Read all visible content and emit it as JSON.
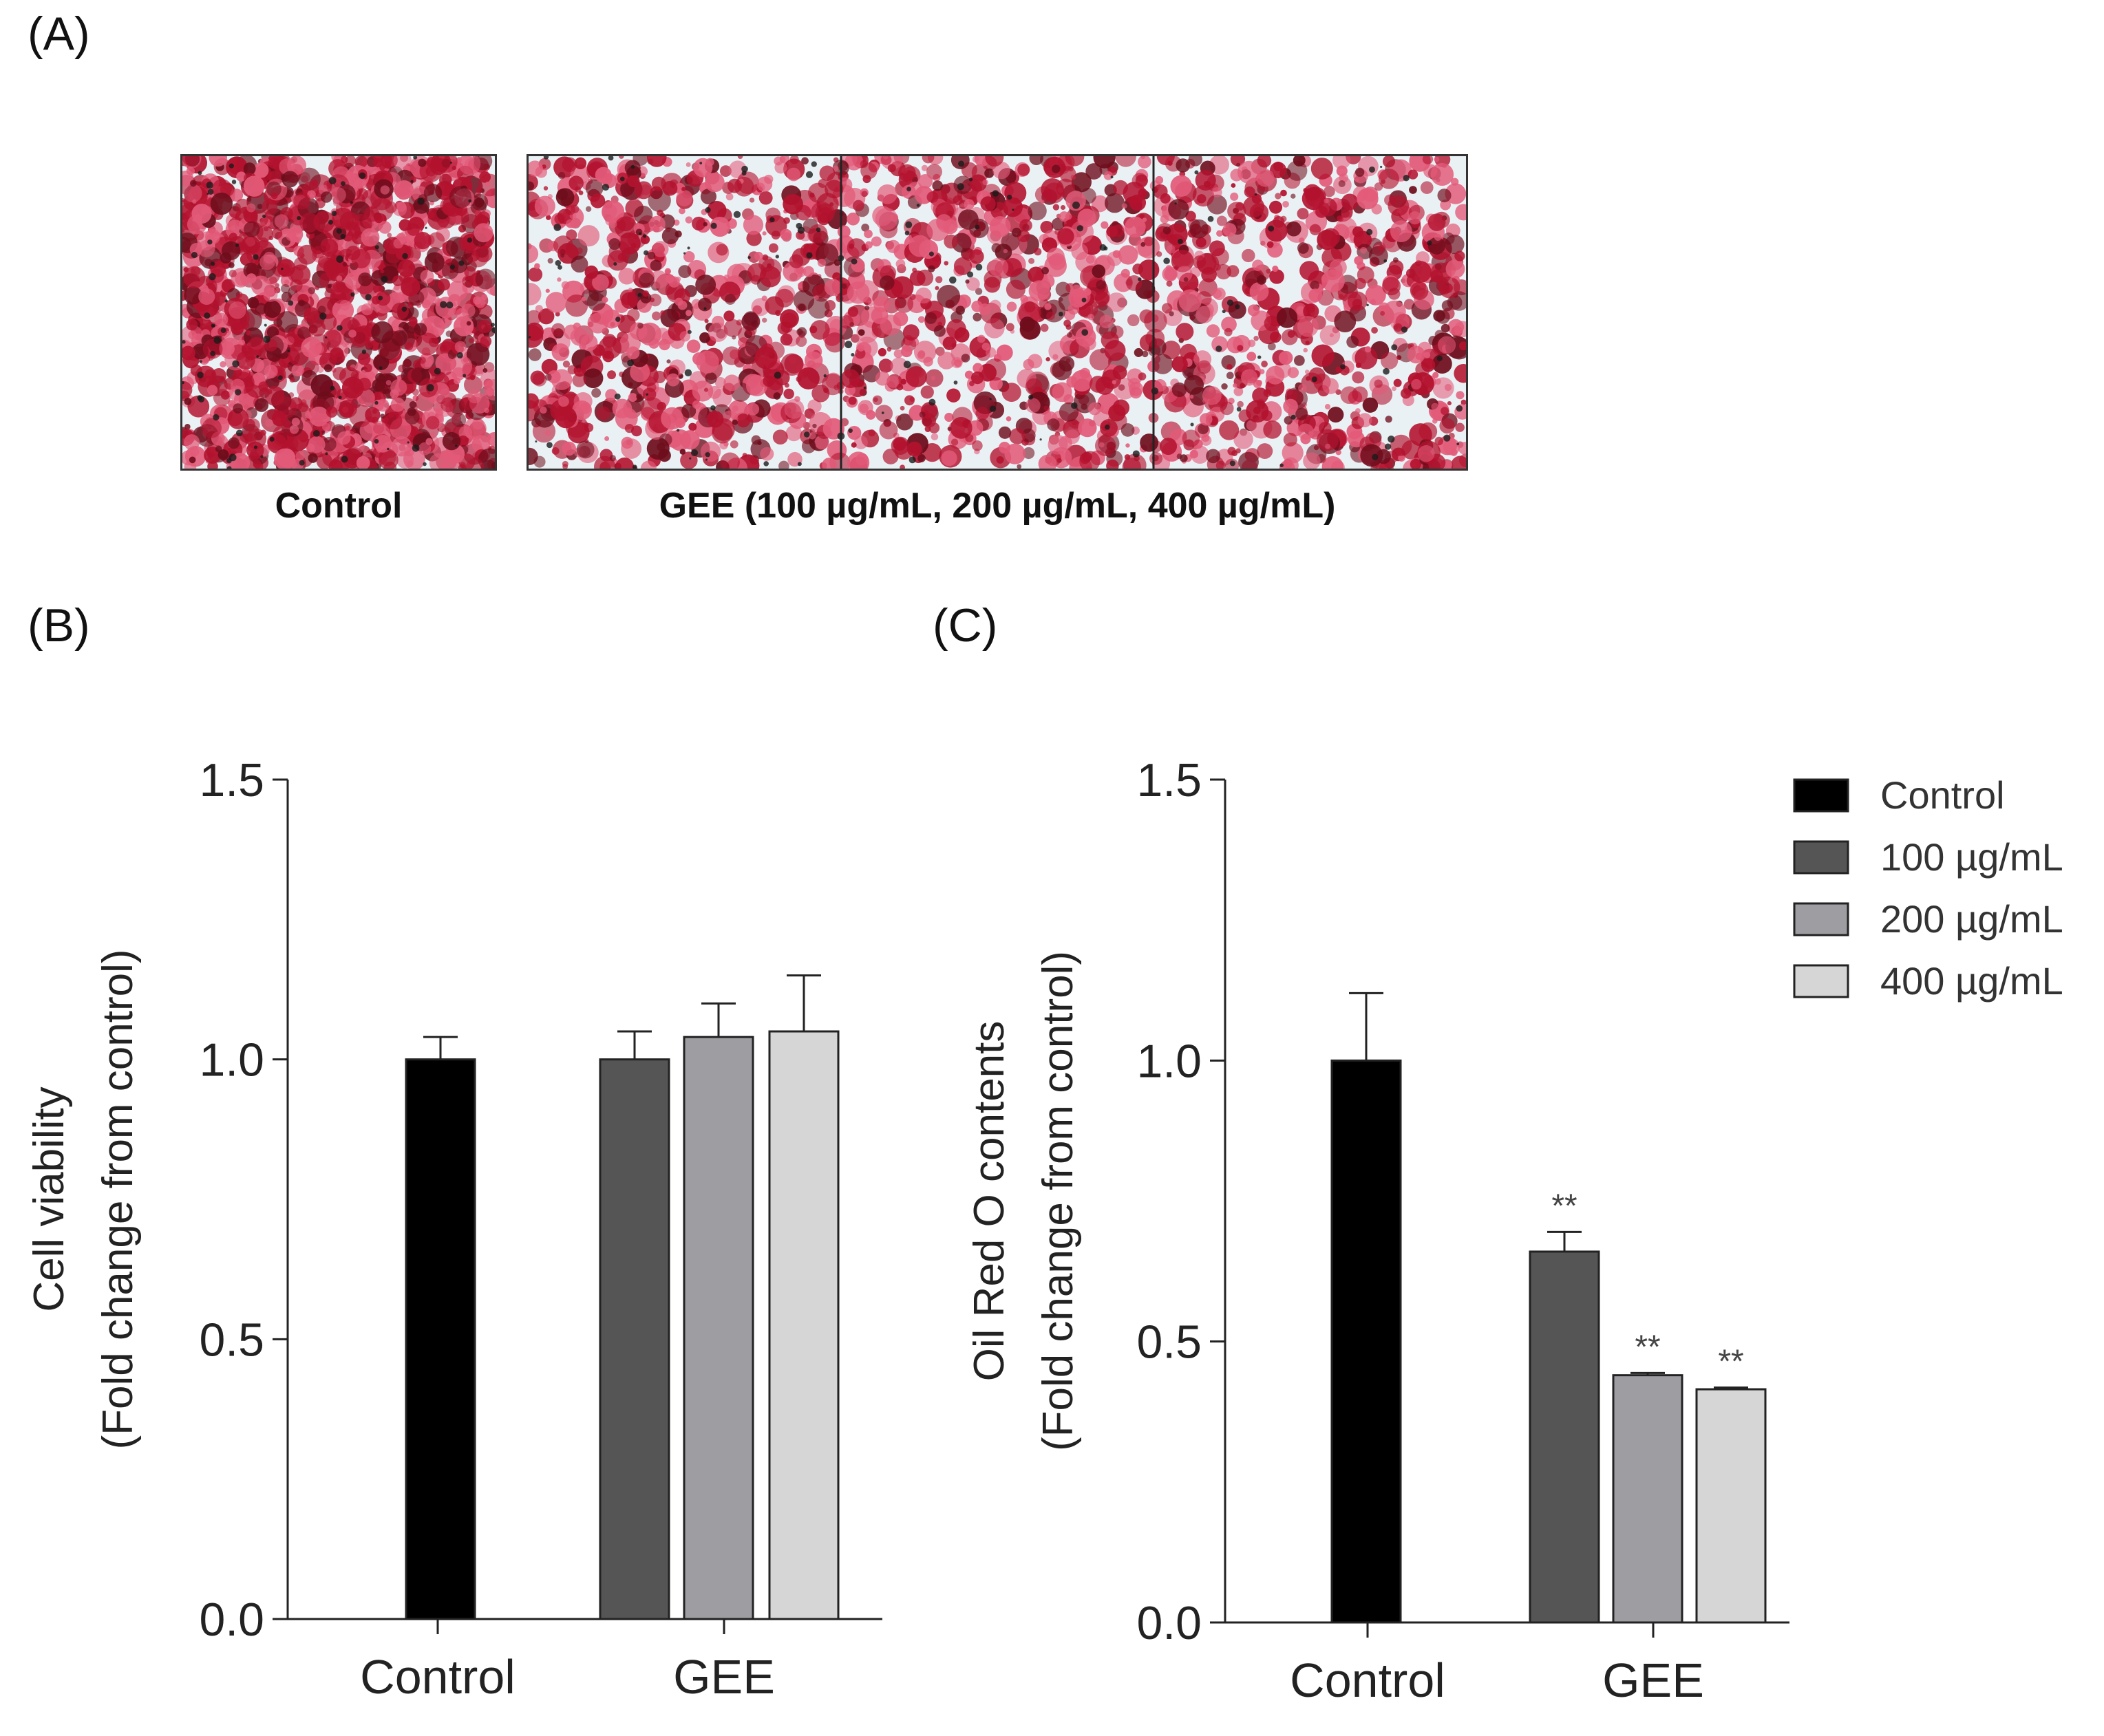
{
  "panels": {
    "a_label": "(A)",
    "b_label": "(B)",
    "c_label": "(C)"
  },
  "images": {
    "control_caption": "Control",
    "gee_caption": "GEE (100 µg/mL, 200 µg/mL, 400 µg/mL)"
  },
  "colors": {
    "control": "#000000",
    "d100": "#555555",
    "d200": "#9e9ea2",
    "d400": "#d6d6d6",
    "stain_dark": "#b3122e",
    "stain_light": "#e25a78"
  },
  "chart_data": [
    {
      "type": "bar",
      "title": "",
      "ylabel_line1": "Cell viability",
      "ylabel_line2": "(Fold change from control)",
      "xlabel": "",
      "ylim": [
        0,
        1.5
      ],
      "yticks": [
        "0.0",
        "0.5",
        "1.0",
        "1.5"
      ],
      "categories": [
        "Control",
        "GEE"
      ],
      "series": [
        {
          "name": "Control",
          "values": [
            1.0,
            null
          ],
          "errors": [
            0.04,
            null
          ],
          "sig": [
            null,
            null
          ]
        },
        {
          "name": "100 µg/mL",
          "values": [
            null,
            1.0
          ],
          "errors": [
            null,
            0.05
          ],
          "sig": [
            null,
            null
          ]
        },
        {
          "name": "200 µg/mL",
          "values": [
            null,
            1.04
          ],
          "errors": [
            null,
            0.06
          ],
          "sig": [
            null,
            null
          ]
        },
        {
          "name": "400 µg/mL",
          "values": [
            null,
            1.05
          ],
          "errors": [
            null,
            0.1
          ],
          "sig": [
            null,
            null
          ]
        }
      ]
    },
    {
      "type": "bar",
      "title": "",
      "ylabel_line1": "Oil Red O contents",
      "ylabel_line2": "(Fold change from control)",
      "xlabel": "",
      "ylim": [
        0,
        1.5
      ],
      "yticks": [
        "0.0",
        "0.5",
        "1.0",
        "1.5"
      ],
      "categories": [
        "Control",
        "GEE"
      ],
      "series": [
        {
          "name": "Control",
          "values": [
            1.0,
            null
          ],
          "errors": [
            0.12,
            null
          ],
          "sig": [
            null,
            null
          ]
        },
        {
          "name": "100 µg/mL",
          "values": [
            null,
            0.66
          ],
          "errors": [
            null,
            0.035
          ],
          "sig": [
            null,
            "**"
          ]
        },
        {
          "name": "200 µg/mL",
          "values": [
            null,
            0.44
          ],
          "errors": [
            null,
            0.004
          ],
          "sig": [
            null,
            "**"
          ]
        },
        {
          "name": "400 µg/mL",
          "values": [
            null,
            0.415
          ],
          "errors": [
            null,
            0.003
          ],
          "sig": [
            null,
            "**"
          ]
        }
      ],
      "legend": [
        "Control",
        "100 µg/mL",
        "200 µg/mL",
        "400 µg/mL"
      ],
      "legend_position": "top-right"
    }
  ]
}
